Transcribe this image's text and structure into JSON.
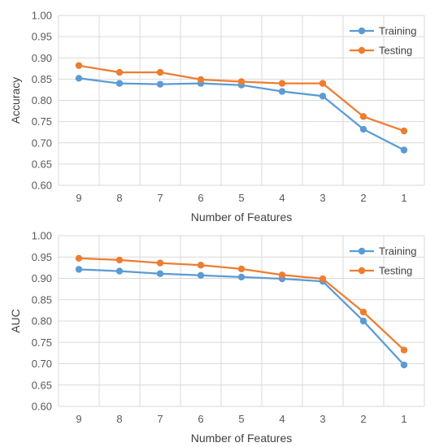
{
  "chart_data": [
    {
      "type": "line",
      "xlabel": "Number of Features",
      "ylabel": "Accuracy",
      "categories": [
        "9",
        "8",
        "7",
        "6",
        "5",
        "4",
        "3",
        "2",
        "1"
      ],
      "ylim": [
        0.6,
        1.0
      ],
      "yticks": [
        "0.60",
        "0.65",
        "0.70",
        "0.75",
        "0.80",
        "0.85",
        "0.90",
        "0.95",
        "1.00"
      ],
      "grid": true,
      "legend": "top-right",
      "series": [
        {
          "name": "Training",
          "color": "#5b9bd5",
          "values": [
            0.852,
            0.84,
            0.838,
            0.84,
            0.836,
            0.821,
            0.81,
            0.732,
            0.683
          ]
        },
        {
          "name": "Testing",
          "color": "#ed7d31",
          "values": [
            0.882,
            0.866,
            0.866,
            0.849,
            0.844,
            0.84,
            0.84,
            0.762,
            0.728
          ]
        }
      ]
    },
    {
      "type": "line",
      "xlabel": "Number of Features",
      "ylabel": "AUC",
      "categories": [
        "9",
        "8",
        "7",
        "6",
        "5",
        "4",
        "3",
        "2",
        "1"
      ],
      "ylim": [
        0.6,
        1.0
      ],
      "yticks": [
        "0.60",
        "0.65",
        "0.70",
        "0.75",
        "0.80",
        "0.85",
        "0.90",
        "0.95",
        "1.00"
      ],
      "grid": true,
      "legend": "top-right",
      "series": [
        {
          "name": "Training",
          "color": "#5b9bd5",
          "values": [
            0.921,
            0.917,
            0.911,
            0.907,
            0.903,
            0.899,
            0.893,
            0.8,
            0.697
          ]
        },
        {
          "name": "Testing",
          "color": "#ed7d31",
          "values": [
            0.947,
            0.943,
            0.936,
            0.931,
            0.922,
            0.908,
            0.899,
            0.821,
            0.732
          ]
        }
      ]
    }
  ]
}
